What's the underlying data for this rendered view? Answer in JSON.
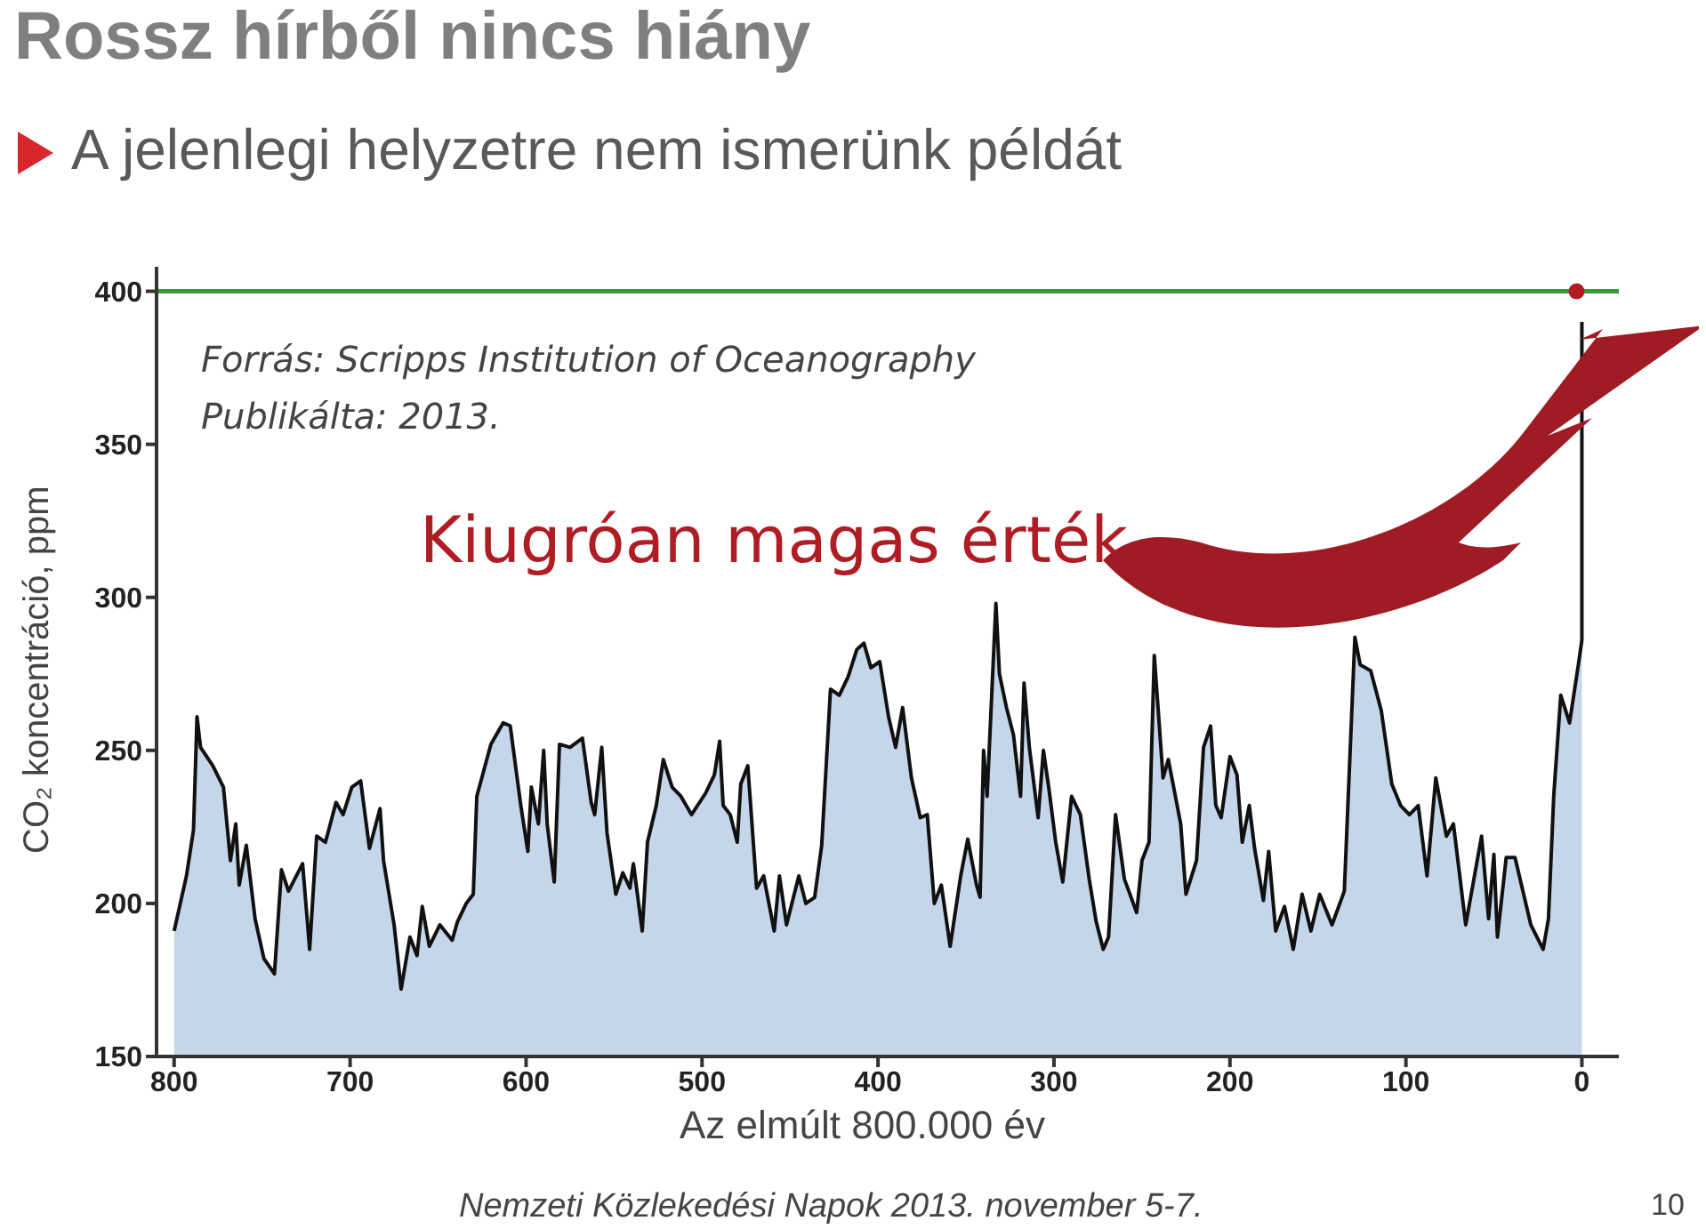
{
  "chart_data": {
    "type": "area",
    "title": "Rossz hírből nincs hiány",
    "subtitle": "A jelenlegi helyzetre nem ismerünk példát",
    "xlabel": "Az elmúlt 800.000 év",
    "ylabel": "CO₂ koncentráció, ppm",
    "annotations": [
      "Forrás: Scripps Institution of Oceanography",
      "Publikálta: 2013.",
      "Kiugróan magas érték",
      "Nemzeti Közlekedési Napok 2013. november 5-7.",
      "10"
    ],
    "series": [
      {
        "color": "#c5d6ea",
        "marker": "none",
        "x": [
          800,
          793,
          789,
          787,
          785,
          778,
          772,
          768,
          765,
          763,
          759,
          754,
          749,
          743,
          739,
          735,
          727,
          723,
          719,
          714,
          708,
          704,
          699,
          694,
          689,
          683,
          681,
          675,
          671,
          666,
          662,
          659,
          655,
          649,
          642,
          639,
          634,
          630,
          628,
          620,
          613,
          609,
          603,
          599,
          597,
          593,
          590,
          588,
          584,
          581,
          575,
          568,
          563,
          561,
          557,
          554,
          549,
          545,
          541,
          539,
          534,
          531,
          526,
          522,
          517,
          512,
          506,
          498,
          493,
          490,
          488,
          484,
          480,
          478,
          474,
          469,
          465,
          459,
          456,
          452,
          445,
          441,
          436,
          432,
          427,
          422,
          417,
          412,
          408,
          404,
          399,
          394,
          390,
          386,
          381,
          376,
          372,
          368,
          364,
          359,
          353,
          349,
          344,
          342,
          340,
          338,
          333,
          331,
          327,
          323,
          319,
          317,
          314,
          309,
          306,
          303,
          299,
          295,
          290,
          285,
          280,
          276,
          272,
          269,
          265,
          260,
          253,
          250,
          246,
          243,
          238,
          235,
          228,
          225,
          219,
          215,
          211,
          208,
          205,
          200,
          196,
          193,
          189,
          186,
          181,
          178,
          174,
          169,
          164,
          159,
          154,
          149,
          142,
          135,
          129,
          126,
          120,
          114,
          108,
          103,
          98,
          93,
          88,
          83,
          77,
          73,
          66,
          57,
          53,
          50,
          48,
          43,
          38,
          29,
          22,
          19,
          16,
          12,
          7,
          2,
          0,
          0
        ],
        "values": [
          191,
          209,
          224,
          261,
          251,
          245,
          238,
          214,
          226,
          206,
          219,
          195,
          182,
          177,
          211,
          204,
          213,
          185,
          222,
          220,
          233,
          229,
          238,
          240,
          218,
          231,
          214,
          193,
          172,
          189,
          183,
          199,
          186,
          193,
          188,
          194,
          200,
          203,
          235,
          252,
          259,
          258,
          232,
          217,
          238,
          226,
          250,
          226,
          207,
          252,
          251,
          254,
          233,
          229,
          251,
          223,
          203,
          210,
          205,
          213,
          191,
          220,
          232,
          247,
          238,
          235,
          229,
          236,
          242,
          253,
          232,
          229,
          220,
          239,
          245,
          205,
          209,
          191,
          209,
          193,
          209,
          200,
          202,
          219,
          270,
          268,
          274,
          283,
          285,
          277,
          279,
          261,
          251,
          264,
          241,
          228,
          229,
          200,
          206,
          186,
          209,
          221,
          206,
          202,
          250,
          235,
          298,
          275,
          264,
          255,
          235,
          272,
          251,
          228,
          250,
          238,
          220,
          207,
          235,
          229,
          208,
          194,
          185,
          189,
          229,
          208,
          197,
          214,
          220,
          281,
          241,
          247,
          226,
          203,
          214,
          251,
          258,
          232,
          228,
          248,
          242,
          220,
          232,
          218,
          201,
          217,
          191,
          199,
          185,
          203,
          191,
          203,
          193,
          204,
          287,
          278,
          276,
          263,
          239,
          232,
          229,
          232,
          209,
          241,
          222,
          226,
          193,
          222,
          195,
          216,
          189,
          215,
          215,
          193,
          185,
          195,
          235,
          268,
          259,
          278,
          286,
          390
        ]
      },
      {
        "type": "scatter",
        "color": "#b01c24",
        "marker": "circle",
        "x": [
          3
        ],
        "values": [
          400
        ]
      }
    ],
    "xlim": [
      810,
      -21
    ],
    "xticks": [
      800,
      700,
      600,
      500,
      400,
      300,
      200,
      100,
      0
    ],
    "ylim": [
      150,
      408
    ],
    "yticks": [
      150,
      200,
      250,
      300,
      350,
      400
    ],
    "ref_lines": [
      {
        "axis": "y",
        "value": 400,
        "color": "#3a9a3a"
      }
    ],
    "grid": false,
    "legend": false
  }
}
